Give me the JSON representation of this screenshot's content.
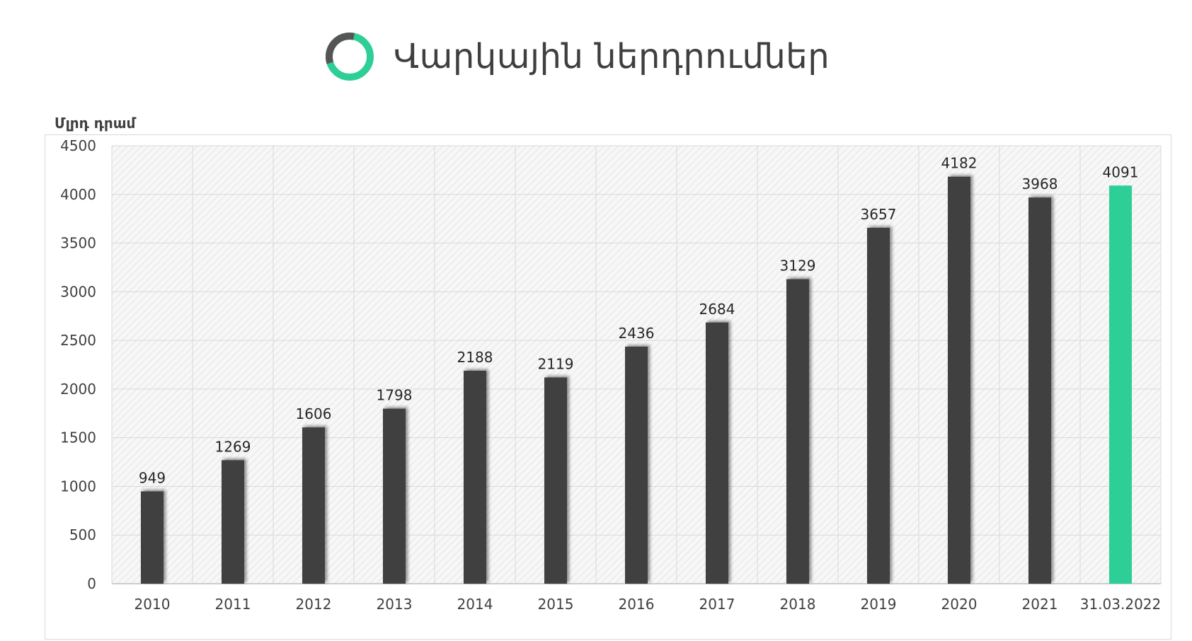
{
  "header": {
    "title": "Վարկային ներդրումներ",
    "logo_icon": "ring-logo-icon",
    "logo_colors": {
      "ring": "#2ecf96",
      "arc": "#555555"
    }
  },
  "chart_data": {
    "type": "bar",
    "title": "Վարկային ներդրումներ",
    "ylabel": "Մլրդ դրամ",
    "xlabel": "",
    "categories": [
      "2010",
      "2011",
      "2012",
      "2013",
      "2014",
      "2015",
      "2016",
      "2017",
      "2018",
      "2019",
      "2020",
      "2021",
      "31.03.2022"
    ],
    "values": [
      949,
      1269,
      1606,
      1798,
      2188,
      2119,
      2436,
      2684,
      3129,
      3657,
      4182,
      3968,
      4091
    ],
    "ylim": [
      0,
      4500
    ],
    "yticks": [
      0,
      500,
      1000,
      1500,
      2000,
      2500,
      3000,
      3500,
      4000,
      4500
    ],
    "grid": true,
    "legend": "none",
    "colors": {
      "bar": "#404040",
      "highlight": "#2ecf96"
    },
    "highlight_category": "31.03.2022"
  }
}
